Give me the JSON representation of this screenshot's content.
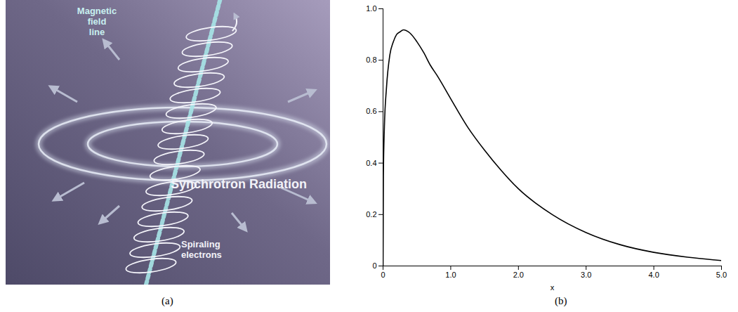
{
  "illustration": {
    "caption": "(a)",
    "field_line_label": [
      "Magnetic",
      "field",
      "line"
    ],
    "radiation_label": "Synchrotron Radiation",
    "electrons_label": [
      "Spiraling",
      "electrons"
    ]
  },
  "chart_data": {
    "type": "line",
    "caption": "(b)",
    "x_label": "x",
    "x": [
      0,
      0.005,
      0.02,
      0.05,
      0.1,
      0.15,
      0.2,
      0.25,
      0.3,
      0.4,
      0.5,
      0.6,
      0.7,
      0.8,
      1.0,
      1.25,
      1.5,
      1.75,
      2.0,
      2.5,
      3.0,
      3.5,
      4.0,
      4.5,
      5.0
    ],
    "values": [
      0,
      0.35,
      0.54,
      0.69,
      0.82,
      0.87,
      0.9,
      0.91,
      0.918,
      0.905,
      0.872,
      0.83,
      0.78,
      0.74,
      0.65,
      0.54,
      0.45,
      0.37,
      0.3,
      0.2,
      0.13,
      0.083,
      0.053,
      0.034,
      0.021
    ],
    "color": "#000000",
    "xlim": [
      0,
      5
    ],
    "ylim": [
      0,
      1
    ],
    "xticks": [
      0,
      {
        "value": 1,
        "label": "1.0"
      },
      {
        "value": 2,
        "label": "2.0"
      },
      {
        "value": 3,
        "label": "3.0"
      },
      {
        "value": 4,
        "label": "4.0"
      },
      {
        "value": 5,
        "label": "5.0"
      }
    ],
    "yticks": [
      0,
      0.2,
      0.4,
      0.6,
      0.8,
      {
        "value": 1,
        "label": "1.0"
      }
    ],
    "grid": false
  }
}
